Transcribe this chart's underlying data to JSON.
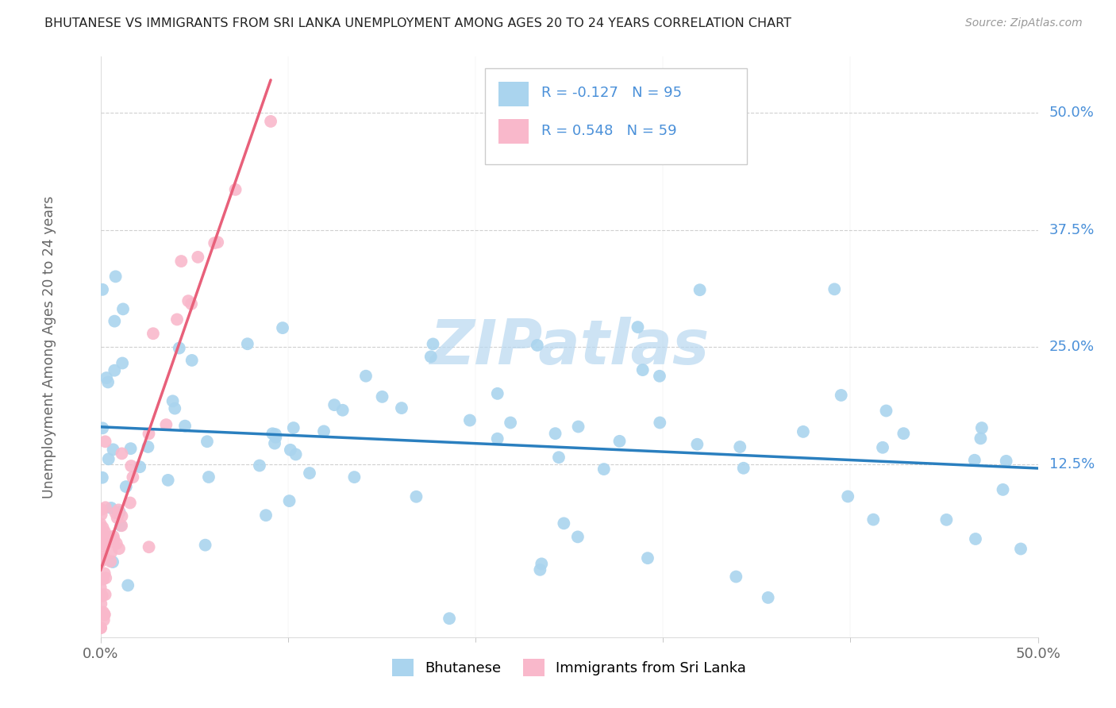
{
  "title": "BHUTANESE VS IMMIGRANTS FROM SRI LANKA UNEMPLOYMENT AMONG AGES 20 TO 24 YEARS CORRELATION CHART",
  "source": "Source: ZipAtlas.com",
  "ylabel": "Unemployment Among Ages 20 to 24 years",
  "y_tick_labels": [
    "12.5%",
    "25.0%",
    "37.5%",
    "50.0%"
  ],
  "y_tick_values": [
    0.125,
    0.25,
    0.375,
    0.5
  ],
  "xlim": [
    0.0,
    0.5
  ],
  "ylim": [
    -0.06,
    0.56
  ],
  "legend_labels": [
    "Bhutanese",
    "Immigrants from Sri Lanka"
  ],
  "legend_R": [
    "-0.127",
    "0.548"
  ],
  "legend_N": [
    "95",
    "59"
  ],
  "blue_color": "#aad4ee",
  "pink_color": "#f9b8cb",
  "blue_line_color": "#2a7fbf",
  "pink_line_color": "#e8607a",
  "pink_dash_color": "#f0a0b8",
  "grid_color": "#d0d0d0",
  "watermark": "ZIPatlas",
  "watermark_color": "#b8d8f0",
  "title_color": "#222222",
  "source_color": "#999999",
  "legend_text_color": "#4a90d9",
  "axis_label_color": "#666666",
  "tick_color": "#4a90d9"
}
